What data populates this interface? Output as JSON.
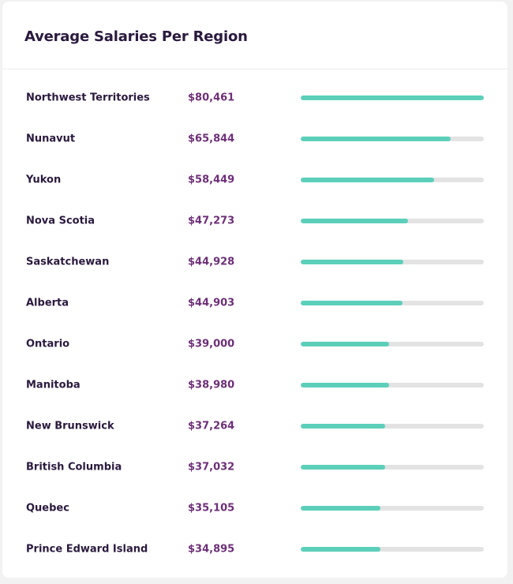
{
  "card": {
    "title": "Average Salaries Per Region"
  },
  "colors": {
    "bar_fill": "#5ccfba",
    "bar_track": "#e3e3e3",
    "region_text": "#2a1a3e",
    "salary_text": "#6d2f78"
  },
  "chart_data": {
    "type": "bar",
    "title": "Average Salaries Per Region",
    "orientation": "horizontal",
    "xlim": [
      0,
      80461
    ],
    "categories": [
      "Northwest Territories",
      "Nunavut",
      "Yukon",
      "Nova Scotia",
      "Saskatchewan",
      "Alberta",
      "Ontario",
      "Manitoba",
      "New Brunswick",
      "British Columbia",
      "Quebec",
      "Prince Edward Island"
    ],
    "values": [
      80461,
      65844,
      58449,
      47273,
      44928,
      44903,
      39000,
      38980,
      37264,
      37032,
      35105,
      34895
    ],
    "labels": [
      "$80,461",
      "$65,844",
      "$58,449",
      "$47,273",
      "$44,928",
      "$44,903",
      "$39,000",
      "$38,980",
      "$37,264",
      "$37,032",
      "$35,105",
      "$34,895"
    ]
  }
}
